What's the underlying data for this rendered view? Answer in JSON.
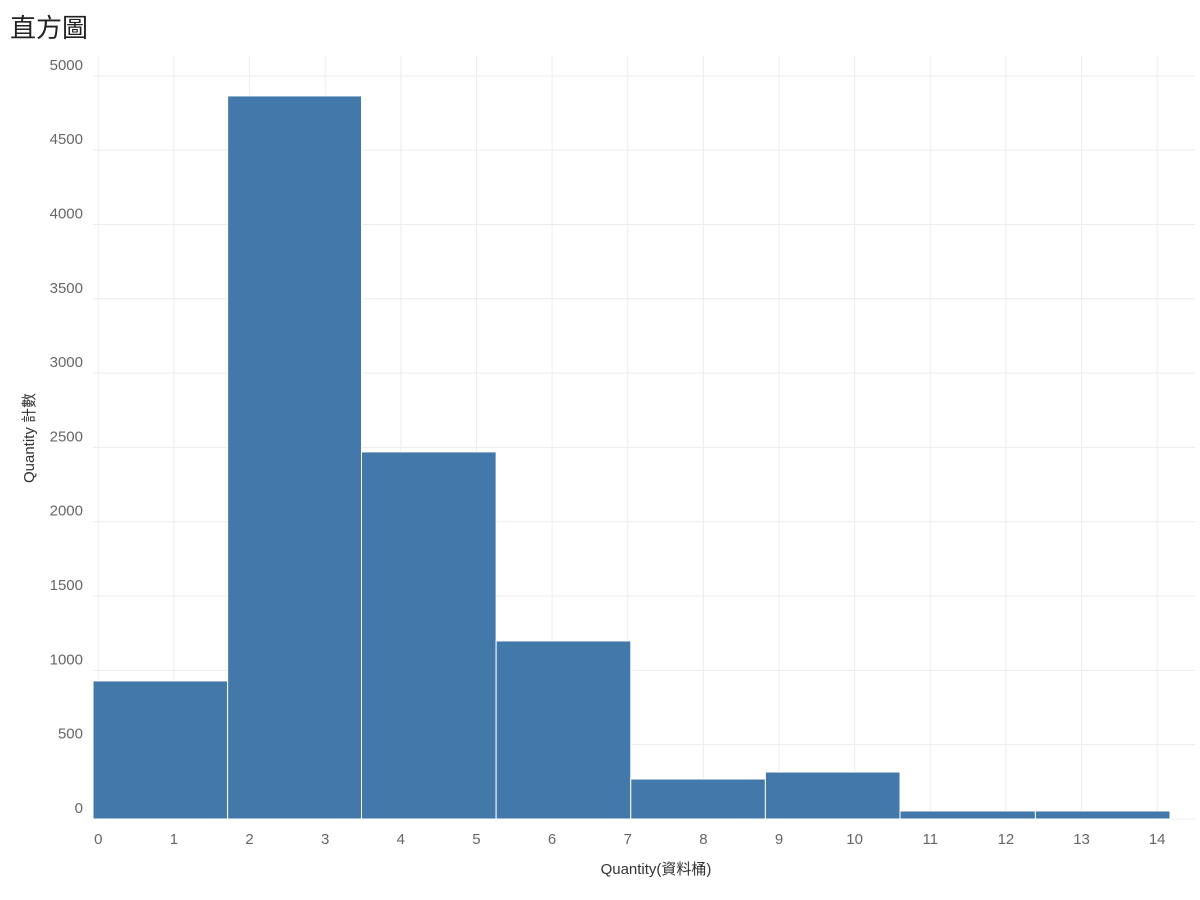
{
  "chart_data": {
    "type": "histogram",
    "title": "直方圖",
    "x_label": "Quantity(資料桶)",
    "y_label": "Quantity 計數",
    "bins": [
      -0.07,
      1.71,
      3.48,
      5.26,
      7.04,
      8.82,
      10.6,
      12.39,
      14.17
    ],
    "values": [
      929,
      4865,
      2470,
      1198,
      269,
      316,
      54,
      54
    ],
    "color": "#4279aa",
    "xlim": [
      -0.07,
      14.5
    ],
    "xticks": [
      0,
      1,
      2,
      3,
      4,
      5,
      6,
      7,
      8,
      9,
      10,
      11,
      12,
      13,
      14
    ],
    "ylim": [
      0,
      5100
    ],
    "yticks": [
      0,
      500,
      1000,
      1500,
      2000,
      2500,
      3000,
      3500,
      4000,
      4500,
      5000
    ],
    "grid": true
  }
}
